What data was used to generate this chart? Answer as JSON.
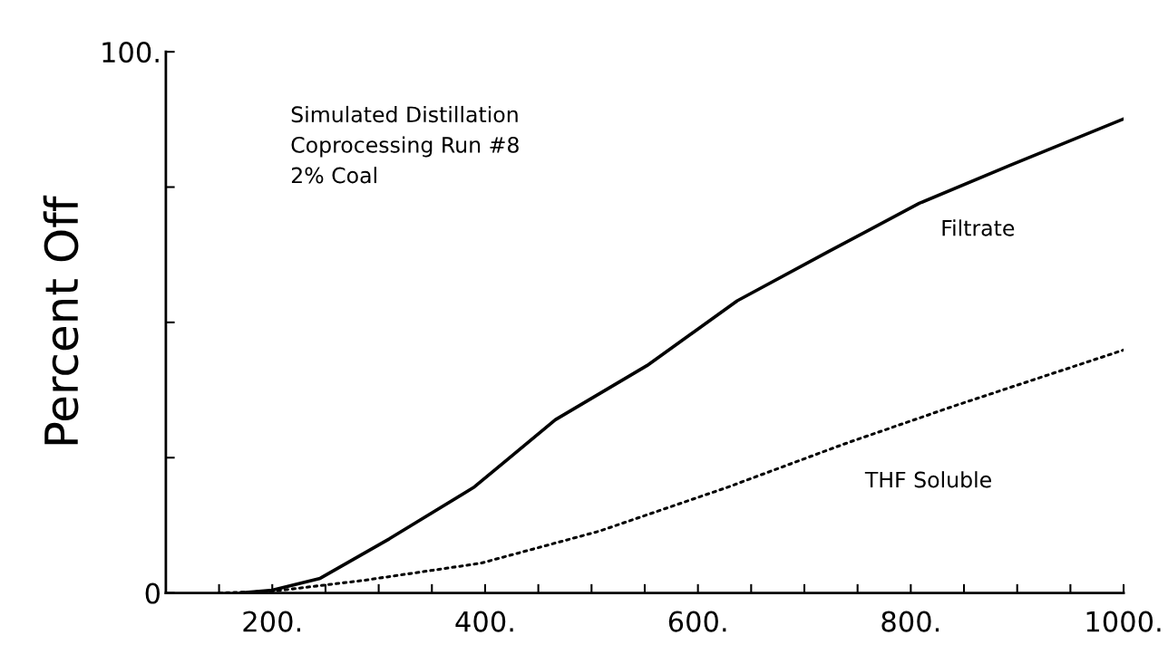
{
  "chart_data": {
    "type": "line",
    "ylabel": "Percent Off",
    "annotations": [
      "Simulated Distillation\nCoprocessing Run #8\n2% Coal"
    ],
    "xlim": [
      100,
      1000
    ],
    "ylim": [
      0,
      100
    ],
    "xticks": [
      {
        "value": 150,
        "label": null
      },
      {
        "value": 200,
        "label": "200."
      },
      {
        "value": 250,
        "label": null
      },
      {
        "value": 300,
        "label": null
      },
      {
        "value": 350,
        "label": null
      },
      {
        "value": 400,
        "label": "400."
      },
      {
        "value": 450,
        "label": null
      },
      {
        "value": 500,
        "label": null
      },
      {
        "value": 550,
        "label": null
      },
      {
        "value": 600,
        "label": "600."
      },
      {
        "value": 650,
        "label": null
      },
      {
        "value": 700,
        "label": null
      },
      {
        "value": 750,
        "label": null
      },
      {
        "value": 800,
        "label": "800."
      },
      {
        "value": 850,
        "label": null
      },
      {
        "value": 900,
        "label": null
      },
      {
        "value": 950,
        "label": null
      },
      {
        "value": 1000,
        "label": "1000."
      }
    ],
    "yticks": [
      {
        "value": 0,
        "label": "0"
      },
      {
        "value": 25,
        "label": null
      },
      {
        "value": 50,
        "label": null
      },
      {
        "value": 75,
        "label": null
      },
      {
        "value": 100,
        "label": "100."
      }
    ],
    "grid": false,
    "legend": false,
    "series": [
      {
        "name": "Filtrate",
        "color": "#000000",
        "line_style": "solid",
        "x": [
          170,
          200,
          245,
          310,
          390,
          466,
          552,
          637,
          722,
          808,
          893,
          1000
        ],
        "values": [
          0,
          0.5,
          2.7,
          10,
          19.6,
          32,
          42,
          54,
          63,
          72,
          79,
          87.6
        ]
      },
      {
        "name": "THF Soluble",
        "color": "#000000",
        "line_style": "dotted",
        "x": [
          150,
          200,
          285,
          396,
          507,
          626,
          737,
          840,
          1000
        ],
        "values": [
          0,
          0.3,
          2.3,
          5.5,
          11.4,
          19.4,
          27.5,
          34.5,
          44.9
        ]
      }
    ]
  }
}
